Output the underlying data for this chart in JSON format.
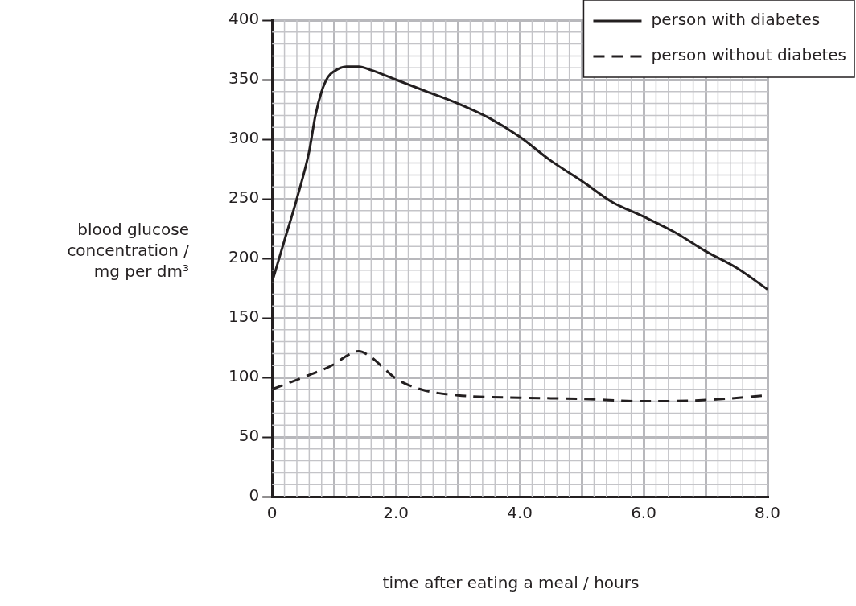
{
  "chart_data": {
    "type": "line",
    "xlabel": "time after eating a meal / hours",
    "ylabel": "blood glucose concentration / mg per dm³",
    "xlim": [
      0,
      8
    ],
    "ylim": [
      0,
      400
    ],
    "xticks": [
      0,
      {
        "value": 1,
        "label": null
      },
      {
        "value": 2,
        "label": "2.0"
      },
      {
        "value": 3,
        "label": null
      },
      {
        "value": 4,
        "label": "4.0"
      },
      {
        "value": 5,
        "label": null
      },
      {
        "value": 6,
        "label": "6.0"
      },
      {
        "value": 7,
        "label": null
      },
      {
        "value": 8,
        "label": "8.0"
      }
    ],
    "yticks": [
      0,
      50,
      100,
      150,
      200,
      250,
      300,
      350,
      400
    ],
    "grid": true,
    "legend": "top right",
    "marker": "none",
    "series": [
      {
        "name": "person with diabetes",
        "color": "#231f20",
        "line_style": "solid",
        "x": [
          0,
          0.2,
          0.4,
          0.6,
          0.7,
          0.8,
          0.9,
          1.0,
          1.2,
          1.4,
          1.6,
          2.0,
          2.5,
          3.0,
          3.5,
          4.0,
          4.5,
          5.0,
          5.5,
          6.0,
          6.5,
          7.0,
          7.5,
          8.0
        ],
        "values": [
          180,
          215,
          250,
          290,
          320,
          340,
          352,
          357,
          361,
          361,
          358,
          350,
          340,
          330,
          318,
          302,
          282,
          265,
          247,
          235,
          222,
          206,
          192,
          174
        ]
      },
      {
        "name": "person without diabetes",
        "color": "#231f20",
        "line_style": "dashed",
        "x": [
          0,
          0.5,
          1.0,
          1.2,
          1.4,
          1.6,
          1.8,
          2.0,
          2.4,
          3.0,
          4.0,
          5.0,
          6.0,
          7.0,
          8.0
        ],
        "values": [
          90,
          100,
          111,
          118,
          122,
          117,
          108,
          99,
          90,
          85,
          83,
          82,
          80,
          81,
          85
        ]
      }
    ]
  }
}
